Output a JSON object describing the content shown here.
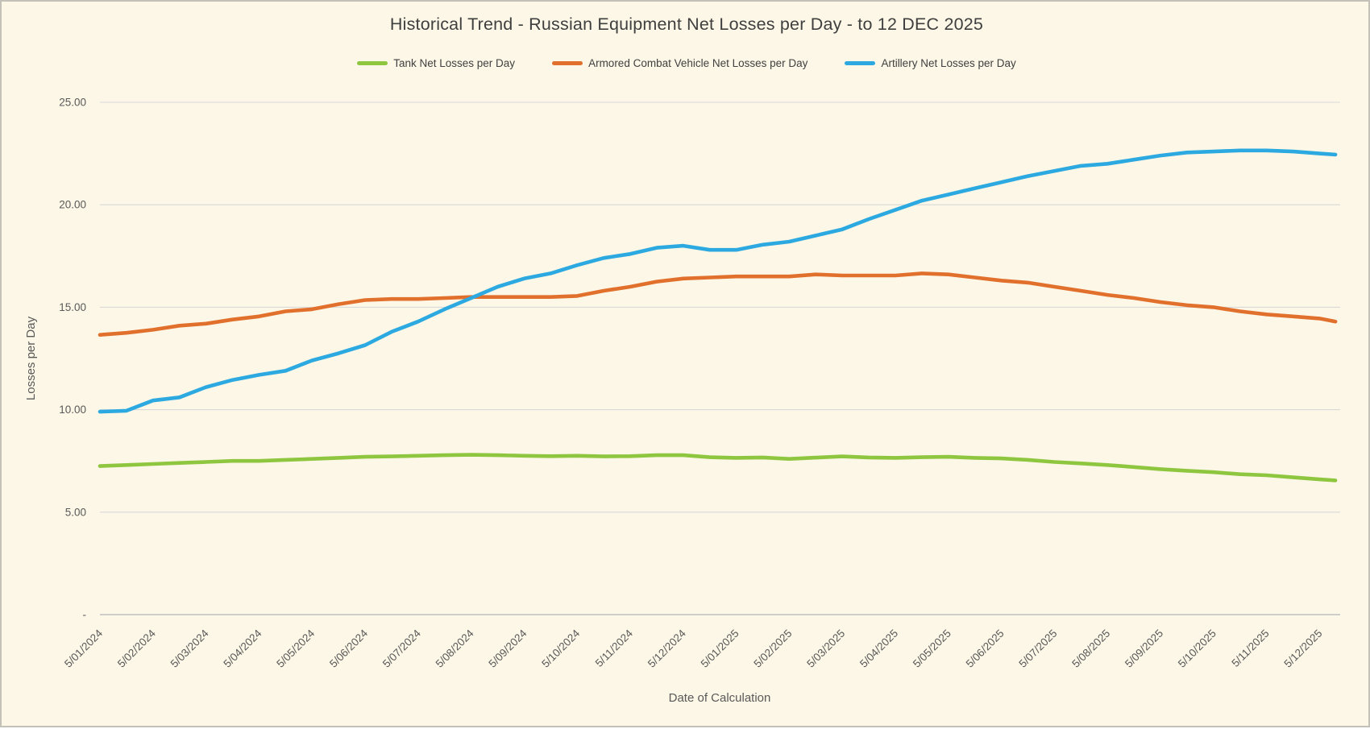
{
  "chart_data": {
    "type": "line",
    "title": "Historical Trend - Russian Equipment Net Losses per Day - to 12 DEC 2025",
    "xlabel": "Date of Calculation",
    "ylabel": "Losses per Day",
    "ylim": [
      0,
      25
    ],
    "grid": true,
    "legend_position": "top",
    "y_tick_values": [
      0,
      5,
      10,
      15,
      20,
      25
    ],
    "y_tick_labels": [
      "-",
      "5.00",
      "10.00",
      "15.00",
      "20.00",
      "25.00"
    ],
    "x_tick_labels": [
      "5/01/2024",
      "5/02/2024",
      "5/03/2024",
      "5/04/2024",
      "5/05/2024",
      "5/06/2024",
      "5/07/2024",
      "5/08/2024",
      "5/09/2024",
      "5/10/2024",
      "5/11/2024",
      "5/12/2024",
      "5/01/2025",
      "5/02/2025",
      "5/03/2025",
      "5/04/2025",
      "5/05/2025",
      "5/06/2025",
      "5/07/2025",
      "5/08/2025",
      "5/09/2025",
      "5/10/2025",
      "5/11/2025",
      "5/12/2025"
    ],
    "x_samples_month_units": [
      0,
      0.5,
      1,
      1.5,
      2,
      2.5,
      3,
      3.5,
      4,
      4.5,
      5,
      5.5,
      6,
      6.5,
      7,
      7.5,
      8,
      8.5,
      9,
      9.5,
      10,
      10.5,
      11,
      11.5,
      12,
      12.5,
      13,
      13.5,
      14,
      14.5,
      15,
      15.5,
      16,
      16.5,
      17,
      17.5,
      18,
      18.5,
      19,
      19.5,
      20,
      20.5,
      21,
      21.5,
      22,
      22.5,
      23,
      23.3
    ],
    "series": [
      {
        "name": "Tank Net Losses per Day",
        "color": "#8FC63F",
        "values": [
          7.25,
          7.3,
          7.35,
          7.4,
          7.45,
          7.5,
          7.5,
          7.55,
          7.6,
          7.65,
          7.7,
          7.72,
          7.75,
          7.78,
          7.8,
          7.78,
          7.75,
          7.73,
          7.75,
          7.72,
          7.73,
          7.78,
          7.78,
          7.68,
          7.65,
          7.67,
          7.6,
          7.66,
          7.72,
          7.67,
          7.65,
          7.68,
          7.7,
          7.65,
          7.62,
          7.55,
          7.45,
          7.38,
          7.3,
          7.2,
          7.1,
          7.02,
          6.95,
          6.85,
          6.8,
          6.7,
          6.6,
          6.55
        ]
      },
      {
        "name": "Armored Combat Vehicle Net Losses per Day",
        "color": "#E2702D",
        "values": [
          13.65,
          13.75,
          13.9,
          14.1,
          14.2,
          14.4,
          14.55,
          14.8,
          14.9,
          15.15,
          15.35,
          15.4,
          15.4,
          15.45,
          15.5,
          15.5,
          15.5,
          15.5,
          15.55,
          15.8,
          16.0,
          16.25,
          16.4,
          16.45,
          16.5,
          16.5,
          16.5,
          16.6,
          16.55,
          16.55,
          16.55,
          16.65,
          16.6,
          16.45,
          16.3,
          16.2,
          16.0,
          15.8,
          15.6,
          15.45,
          15.25,
          15.1,
          15.0,
          14.8,
          14.65,
          14.55,
          14.45,
          14.3
        ]
      },
      {
        "name": "Artillery Net Losses per Day",
        "color": "#2BA9E0",
        "values": [
          9.9,
          9.95,
          10.45,
          10.6,
          11.1,
          11.45,
          11.7,
          11.9,
          12.4,
          12.75,
          13.15,
          13.8,
          14.3,
          14.9,
          15.45,
          16.0,
          16.4,
          16.65,
          17.05,
          17.4,
          17.6,
          17.9,
          18.0,
          17.8,
          17.8,
          18.05,
          18.2,
          18.5,
          18.8,
          19.3,
          19.75,
          20.2,
          20.5,
          20.8,
          21.1,
          21.4,
          21.65,
          21.9,
          22.0,
          22.2,
          22.4,
          22.55,
          22.6,
          22.65,
          22.65,
          22.6,
          22.5,
          22.45
        ]
      }
    ],
    "colors": {
      "background": "#FCF7E6",
      "gridline": "#D9D9D9",
      "axis_line": "#BFBFBF",
      "title_text": "#3F3F3F",
      "axis_text": "#595959",
      "legend_text": "#404040"
    }
  }
}
